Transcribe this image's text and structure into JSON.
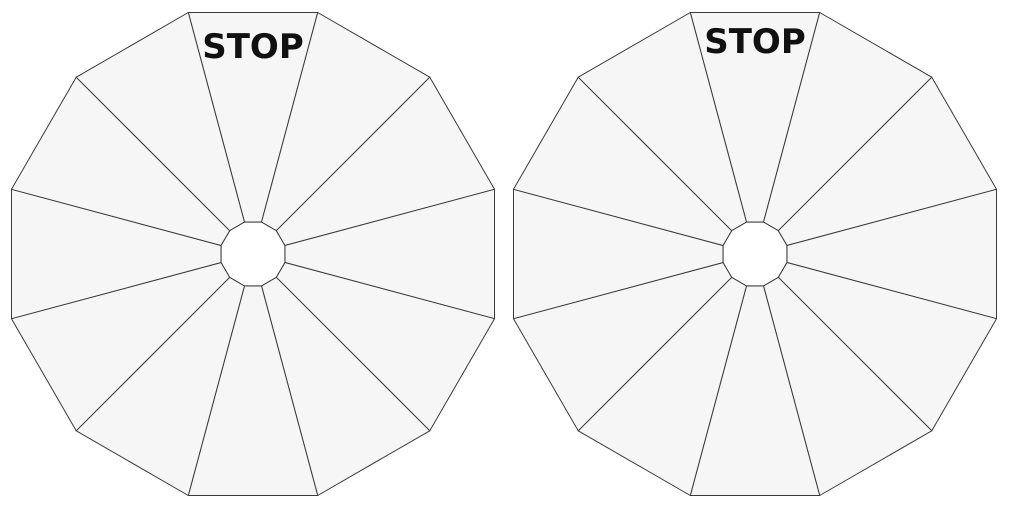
{
  "wheels": [
    {
      "label": "STOP",
      "segment_count": 12
    },
    {
      "label": "STOP",
      "segment_count": 12
    }
  ]
}
